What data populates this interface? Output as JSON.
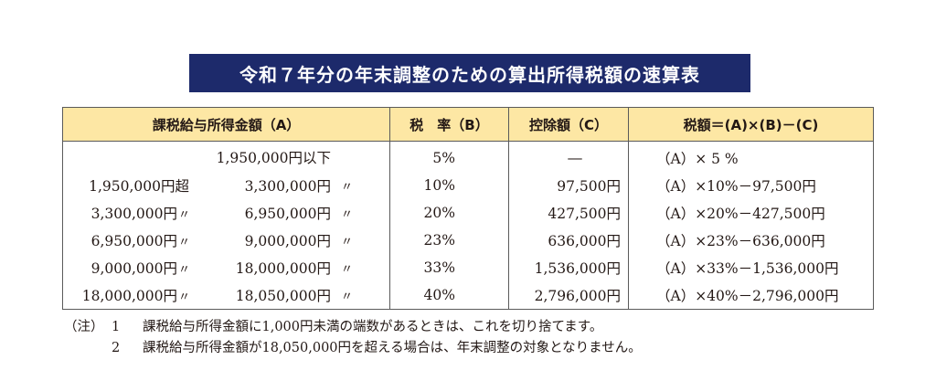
{
  "title": "令和７年分の年末調整のための算出所得税額の速算表",
  "headers": {
    "income": "課税給与所得金額（A）",
    "rate": "税　率（B）",
    "deduction": "控除額（C）",
    "tax": "税額＝(A)×(B)－(C)"
  },
  "rows": [
    {
      "from": "",
      "from_mark": "",
      "to": "1,950,000円以下",
      "to_mark": "",
      "rate": "5%",
      "deduction": "―",
      "formula": "（A）× 5 %"
    },
    {
      "from": "1,950,000円超",
      "from_mark": "",
      "to": "3,300,000円",
      "to_mark": "〃",
      "rate": "10%",
      "deduction": "97,500円",
      "formula": "（A）×10%－97,500円"
    },
    {
      "from": "3,300,000円",
      "from_mark": "〃",
      "to": "6,950,000円",
      "to_mark": "〃",
      "rate": "20%",
      "deduction": "427,500円",
      "formula": "（A）×20%－427,500円"
    },
    {
      "from": "6,950,000円",
      "from_mark": "〃",
      "to": "9,000,000円",
      "to_mark": "〃",
      "rate": "23%",
      "deduction": "636,000円",
      "formula": "（A）×23%－636,000円"
    },
    {
      "from": "9,000,000円",
      "from_mark": "〃",
      "to": "18,000,000円",
      "to_mark": "〃",
      "rate": "33%",
      "deduction": "1,536,000円",
      "formula": "（A）×33%－1,536,000円"
    },
    {
      "from": "18,000,000円",
      "from_mark": "〃",
      "to": "18,050,000円",
      "to_mark": "〃",
      "rate": "40%",
      "deduction": "2,796,000円",
      "formula": "（A）×40%－2,796,000円"
    }
  ],
  "notes": {
    "label": "（注）",
    "items": [
      {
        "num": "1",
        "text": "課税給与所得金額に1,000円未満の端数があるときは、これを切り捨てます。"
      },
      {
        "num": "2",
        "text": "課税給与所得金額が18,050,000円を超える場合は、年末調整の対象となりません。"
      }
    ]
  }
}
